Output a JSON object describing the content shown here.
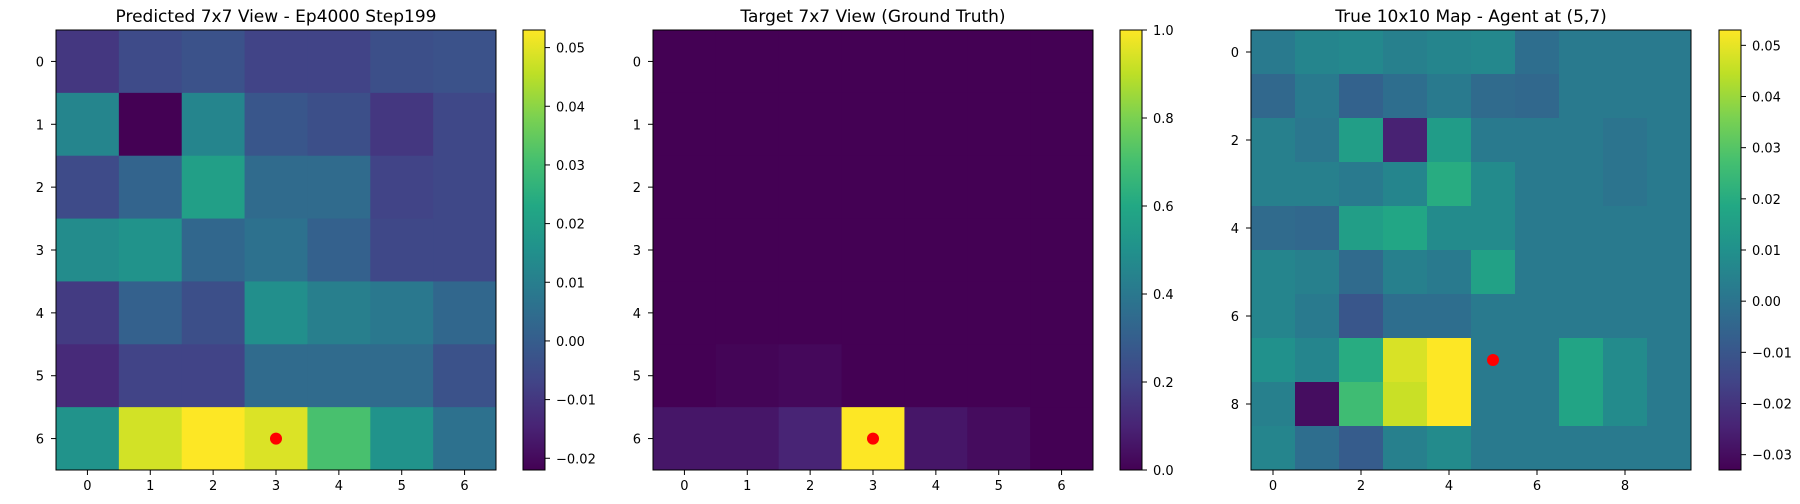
{
  "chart_data": [
    {
      "type": "heatmap",
      "title": "Predicted 7x7 View - Ep4000 Step199",
      "colormap": "viridis",
      "clim": [
        -0.022,
        0.053
      ],
      "x_ticks": [
        "0",
        "1",
        "2",
        "3",
        "4",
        "5",
        "6"
      ],
      "y_ticks": [
        "0",
        "1",
        "2",
        "3",
        "4",
        "5",
        "6"
      ],
      "colorbar_ticks": [
        0.05,
        0.04,
        0.03,
        0.02,
        0.01,
        0.0
      ],
      "colorbar_ticks_neg": [
        -0.01,
        -0.02
      ],
      "colorbar_labels": [
        "0.05",
        "0.04",
        "0.03",
        "0.02",
        "0.01",
        "0.00",
        "−0.01",
        "−0.02"
      ],
      "marker": {
        "x": 3,
        "y": 6,
        "color": "#ff0000"
      },
      "values": [
        [
          -0.01,
          -0.005,
          -0.003,
          -0.007,
          -0.007,
          -0.004,
          -0.003
        ],
        [
          0.012,
          -0.022,
          0.012,
          -0.002,
          -0.004,
          -0.01,
          -0.006
        ],
        [
          -0.005,
          0.002,
          0.02,
          0.004,
          0.004,
          -0.007,
          -0.006
        ],
        [
          0.014,
          0.016,
          0.003,
          0.006,
          0.001,
          -0.006,
          -0.006
        ],
        [
          -0.009,
          0.001,
          -0.004,
          0.015,
          0.01,
          0.008,
          0.003
        ],
        [
          -0.013,
          -0.007,
          -0.007,
          0.004,
          0.004,
          0.004,
          -0.003
        ],
        [
          0.016,
          0.048,
          0.053,
          0.049,
          0.031,
          0.016,
          0.006
        ]
      ]
    },
    {
      "type": "heatmap",
      "title": "Target 7x7 View (Ground Truth)",
      "colormap": "viridis",
      "clim": [
        0.0,
        1.0
      ],
      "x_ticks": [
        "0",
        "1",
        "2",
        "3",
        "4",
        "5",
        "6"
      ],
      "y_ticks": [
        "0",
        "1",
        "2",
        "3",
        "4",
        "5",
        "6"
      ],
      "colorbar_ticks": [
        1.0,
        0.8,
        0.6,
        0.4,
        0.2,
        0.0
      ],
      "colorbar_labels": [
        "1.0",
        "0.8",
        "0.6",
        "0.4",
        "0.2",
        "0.0"
      ],
      "marker": {
        "x": 3,
        "y": 6,
        "color": "#ff0000"
      },
      "values": [
        [
          0.0,
          0.0,
          0.0,
          0.0,
          0.0,
          0.0,
          0.0
        ],
        [
          0.0,
          0.0,
          0.0,
          0.0,
          0.0,
          0.0,
          0.0
        ],
        [
          0.0,
          0.0,
          0.0,
          0.0,
          0.0,
          0.0,
          0.0
        ],
        [
          0.0,
          0.0,
          0.0,
          0.0,
          0.0,
          0.0,
          0.0
        ],
        [
          0.0,
          0.0,
          0.0,
          0.0,
          0.0,
          0.0,
          0.0
        ],
        [
          0.0,
          0.01,
          0.02,
          0.0,
          0.0,
          0.0,
          0.0
        ],
        [
          0.06,
          0.06,
          0.1,
          1.0,
          0.06,
          0.03,
          0.0
        ]
      ]
    },
    {
      "type": "heatmap",
      "title": "True 10x10 Map - Agent at (5,7)",
      "colormap": "viridis",
      "clim": [
        -0.033,
        0.053
      ],
      "x_ticks": [
        "0",
        "2",
        "4",
        "6",
        "8"
      ],
      "y_ticks": [
        "0",
        "2",
        "4",
        "6",
        "8"
      ],
      "colorbar_ticks": [
        0.05,
        0.04,
        0.03,
        0.02,
        0.01,
        0.0,
        -0.01,
        -0.02,
        -0.03
      ],
      "colorbar_labels": [
        "0.05",
        "0.04",
        "0.03",
        "0.02",
        "0.01",
        "0.00",
        "−0.01",
        "−0.02",
        "−0.03"
      ],
      "marker": {
        "x": 5,
        "y": 7,
        "color": "#ff0000"
      },
      "values": [
        [
          0.002,
          0.006,
          0.007,
          0.004,
          0.006,
          0.007,
          -0.002,
          0.002,
          0.002,
          0.002
        ],
        [
          -0.004,
          0.002,
          -0.006,
          -0.002,
          0.002,
          -0.003,
          -0.004,
          0.002,
          0.002,
          0.002
        ],
        [
          0.004,
          0.001,
          0.015,
          -0.025,
          0.014,
          0.002,
          0.002,
          0.002,
          0.0,
          0.002
        ],
        [
          0.004,
          0.004,
          0.002,
          0.006,
          0.02,
          0.008,
          0.002,
          0.002,
          0.0,
          0.002
        ],
        [
          -0.003,
          -0.004,
          0.015,
          0.018,
          0.008,
          0.008,
          0.002,
          0.002,
          0.002,
          0.002
        ],
        [
          0.006,
          0.004,
          -0.003,
          0.004,
          0.002,
          0.016,
          0.002,
          0.002,
          0.002,
          0.002
        ],
        [
          0.006,
          0.002,
          -0.01,
          -0.002,
          -0.002,
          0.002,
          0.002,
          0.002,
          0.002,
          0.002
        ],
        [
          0.01,
          0.006,
          0.02,
          0.048,
          0.053,
          0.002,
          0.002,
          0.017,
          0.008,
          0.002
        ],
        [
          0.004,
          -0.03,
          0.026,
          0.046,
          0.053,
          0.002,
          0.002,
          0.017,
          0.008,
          0.002
        ],
        [
          0.006,
          -0.002,
          -0.008,
          0.004,
          0.008,
          0.002,
          0.002,
          0.002,
          0.002,
          0.002
        ]
      ]
    }
  ]
}
